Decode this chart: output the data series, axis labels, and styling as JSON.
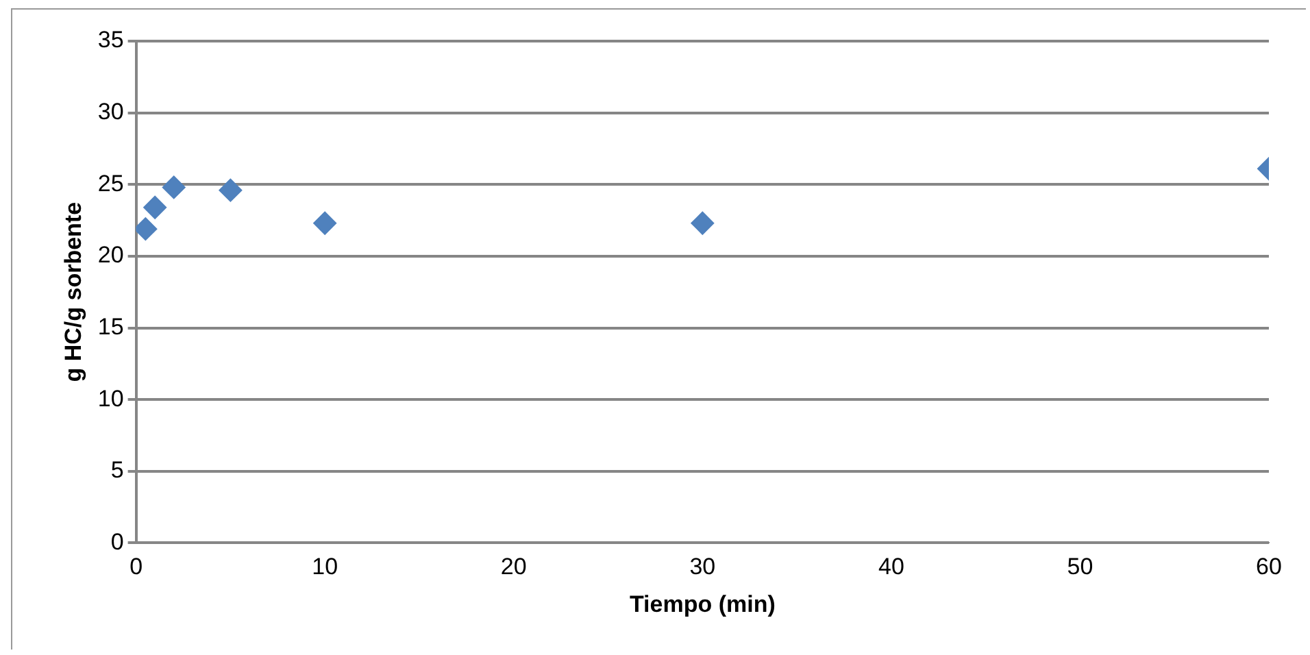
{
  "chart_data": {
    "type": "scatter",
    "xlabel": "Tiempo (min)",
    "ylabel": "g HC/g sorbente",
    "x": [
      0.5,
      1,
      2,
      5,
      10,
      30,
      60
    ],
    "series": [
      {
        "color": "#4f81bd",
        "values": [
          21.9,
          23.4,
          24.8,
          24.6,
          22.3,
          22.3,
          26.1
        ]
      }
    ],
    "xlim": [
      0,
      60
    ],
    "xticks": [
      0,
      10,
      20,
      30,
      40,
      50,
      60
    ],
    "ylim": [
      0,
      35
    ],
    "yticks": [
      0,
      5,
      10,
      15,
      20,
      25,
      30,
      35
    ],
    "grid": "y",
    "legend": false,
    "marker": "diamond"
  }
}
